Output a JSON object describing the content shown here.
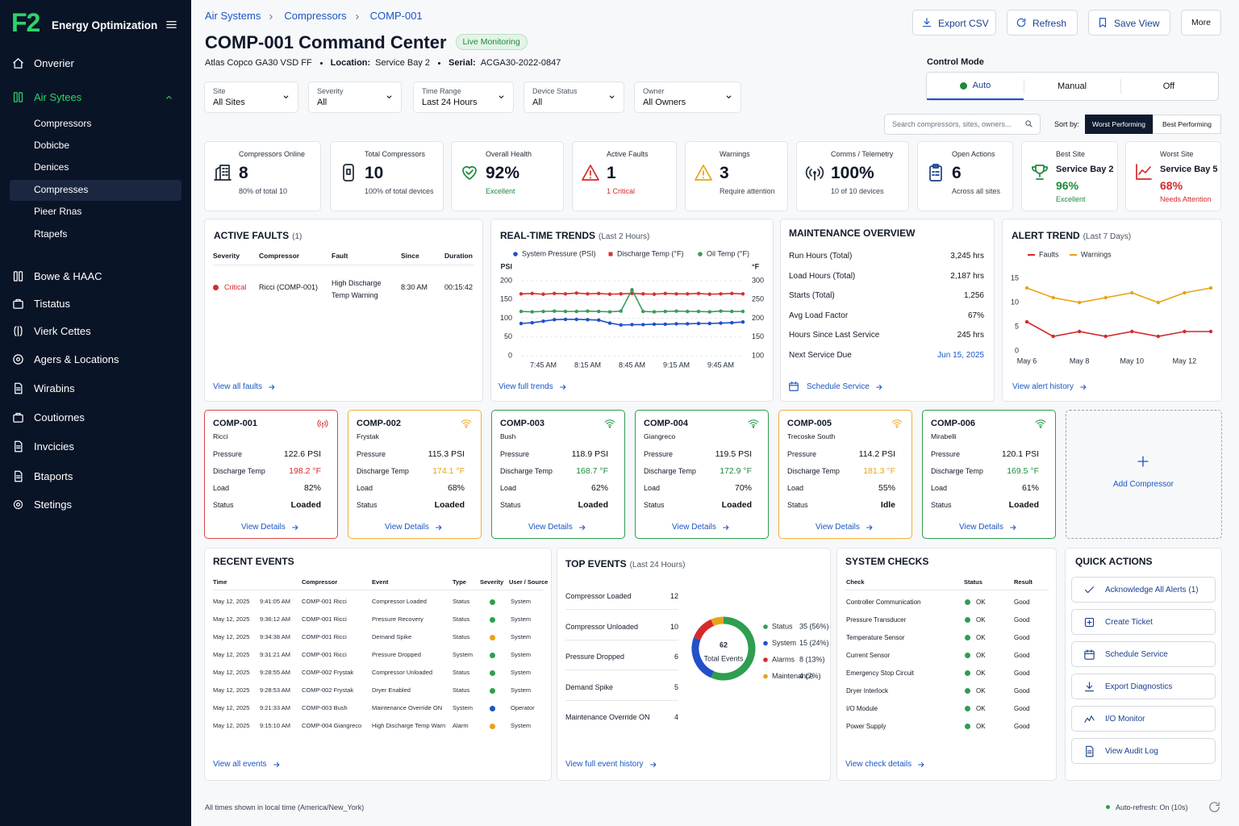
{
  "sidebar": {
    "logo": "F2",
    "brand": "Energy Optimization",
    "nav": [
      {
        "label": "Onverier"
      },
      {
        "label": "Air Sytees",
        "expanded": true,
        "children": [
          {
            "label": "Compressors"
          },
          {
            "label": "Dobicbe"
          },
          {
            "label": "Denices"
          },
          {
            "label": "Compresses",
            "selected": true
          },
          {
            "label": "Pieer Rnas"
          },
          {
            "label": "Rtapefs"
          }
        ]
      },
      {
        "label": "Bowe & HAAC"
      },
      {
        "label": "Tistatus"
      },
      {
        "label": "Vierk Cettes"
      },
      {
        "label": "Agers & Locations"
      },
      {
        "label": "Wirabins"
      },
      {
        "label": "Coutiornes"
      },
      {
        "label": "Invcicies"
      },
      {
        "label": "Btaports"
      },
      {
        "label": "Stetings"
      }
    ]
  },
  "header": {
    "breadcrumb": [
      "Air Systems",
      "Compressors",
      "COMP-001"
    ],
    "title": "COMP-001 Command Center",
    "badge": "Live Monitoring",
    "model": "Atlas Copco GA30 VSD FF",
    "location_label": "Location:",
    "location": "Service Bay 2",
    "serial_label": "Serial:",
    "serial": "ACGA30-2022-0847",
    "actions": [
      "Export CSV",
      "Refresh",
      "Save View",
      "More"
    ]
  },
  "control_mode": {
    "label": "Control Mode",
    "options": [
      {
        "label": "Auto",
        "active": true
      },
      {
        "label": "Manual"
      },
      {
        "label": "Off"
      }
    ]
  },
  "filters": [
    {
      "label": "Site",
      "value": "All Sites"
    },
    {
      "label": "Severity",
      "value": "All"
    },
    {
      "label": "Time Range",
      "value": "Last 24 Hours"
    },
    {
      "label": "Device Status",
      "value": "All"
    },
    {
      "label": "Owner",
      "value": "All Owners"
    }
  ],
  "search": {
    "placeholder": "Search compressors, sites, owners...",
    "sort_label": "Sort by:",
    "sort_options": [
      {
        "label": "Worst Performing",
        "active": true
      },
      {
        "label": "Best Performing"
      }
    ]
  },
  "kpis": [
    {
      "label": "Compressors Online",
      "value": "8",
      "sub": "80% of total 10"
    },
    {
      "label": "Total Compressors",
      "value": "10",
      "sub": "100% of total devices"
    },
    {
      "label": "Overall Health",
      "value": "92%",
      "sub": "Excellent",
      "sub_color": "#1e8a3c"
    },
    {
      "label": "Active Faults",
      "value": "1",
      "sub": "1 Critical",
      "sub_color": "#d42a2a"
    },
    {
      "label": "Warnings",
      "value": "3",
      "sub": "Require attention"
    },
    {
      "label": "Comms / Telemetry",
      "value": "100%",
      "sub": "10 of 10 devices"
    },
    {
      "label": "Open Actions",
      "value": "6",
      "sub": "Across all sites"
    },
    {
      "label": "Best Site",
      "name": "Service Bay 2",
      "value": "96%",
      "sub": "Excellent",
      "value_color": "#1e8a3c",
      "sub_color": "#1e8a3c"
    },
    {
      "label": "Worst Site",
      "name": "Service Bay 5",
      "value": "68%",
      "sub": "Needs Attention",
      "value_color": "#d42a2a",
      "sub_color": "#d42a2a"
    }
  ],
  "active_faults": {
    "title": "ACTIVE FAULTS",
    "count": "(1)",
    "columns": [
      "Severity",
      "Compressor",
      "Fault",
      "Since",
      "Duration"
    ],
    "rows": [
      [
        "Critical",
        "Ricci (COMP-001)",
        "High Discharge Temp Warning",
        "8:30 AM",
        "00:15:42"
      ]
    ],
    "link": "View all faults"
  },
  "maintenance": {
    "title": "MAINTENANCE OVERVIEW",
    "rows": [
      {
        "label": "Run Hours (Total)",
        "value": "3,245 hrs"
      },
      {
        "label": "Load Hours (Total)",
        "value": "2,187 hrs"
      },
      {
        "label": "Starts (Total)",
        "value": "1,256"
      },
      {
        "label": "Avg Load Factor",
        "value": "67%"
      },
      {
        "label": "Hours Since Last Service",
        "value": "245 hrs"
      },
      {
        "label": "Next Service Due",
        "value": "Jun 15, 2025",
        "color": "#1a56c4"
      }
    ],
    "link": "Schedule Service"
  },
  "compressors": {
    "fields": [
      "Pressure",
      "Discharge Temp",
      "Load",
      "Status"
    ],
    "link": "View Details",
    "add": "Add Compressor",
    "items": [
      {
        "id": "COMP-001",
        "name": "Ricci",
        "color": "#e04646",
        "temp_color": "#d42a2a",
        "values": [
          "122.6 PSI",
          "198.2 °F",
          "82%",
          "Loaded"
        ]
      },
      {
        "id": "COMP-002",
        "name": "Frystak",
        "color": "#efb03a",
        "temp_color": "#e8a317",
        "values": [
          "115.3 PSI",
          "174.1 °F",
          "68%",
          "Loaded"
        ]
      },
      {
        "id": "COMP-003",
        "name": "Bush",
        "color": "#2e9e4f",
        "temp_color": "#1e8a3c",
        "values": [
          "118.9 PSI",
          "168.7 °F",
          "62%",
          "Loaded"
        ]
      },
      {
        "id": "COMP-004",
        "name": "Giangreco",
        "color": "#2e9e4f",
        "temp_color": "#1e8a3c",
        "values": [
          "119.5 PSI",
          "172.9 °F",
          "70%",
          "Loaded"
        ]
      },
      {
        "id": "COMP-005",
        "name": "Trecoske South",
        "color": "#efb03a",
        "temp_color": "#e8a317",
        "values": [
          "114.2 PSI",
          "181.3 °F",
          "55%",
          "Idle"
        ]
      },
      {
        "id": "COMP-006",
        "name": "Mirabelli",
        "color": "#2e9e4f",
        "temp_color": "#1e8a3c",
        "values": [
          "120.1 PSI",
          "169.5 °F",
          "61%",
          "Loaded"
        ]
      }
    ]
  },
  "recent_events": {
    "title": "RECENT EVENTS",
    "columns": [
      "Time",
      "Compressor",
      "Event",
      "Type",
      "Severity",
      "User / Source"
    ],
    "rows": [
      {
        "date": "May 12, 2025",
        "time": "9:41:05 AM",
        "compressor": "COMP-001  Ricci",
        "event": "Compressor Loaded",
        "type": "Status",
        "severity_color": "#2e9e4f",
        "source": "System"
      },
      {
        "date": "May 12, 2025",
        "time": "9:36:12 AM",
        "compressor": "COMP-001  Ricci",
        "event": "Pressure Recovery",
        "type": "Status",
        "severity_color": "#2e9e4f",
        "source": "System"
      },
      {
        "date": "May 12, 2025",
        "time": "9:34:38 AM",
        "compressor": "COMP-001  Ricci",
        "event": "Demand Spike",
        "type": "Status",
        "severity_color": "#e8a317",
        "source": "System"
      },
      {
        "date": "May 12, 2025",
        "time": "9:31:21 AM",
        "compressor": "COMP-001  Ricci",
        "event": "Pressure Dropped",
        "type": "System",
        "severity_color": "#2e9e4f",
        "source": "System"
      },
      {
        "date": "May 12, 2025",
        "time": "9:28:55 AM",
        "compressor": "COMP-002  Frystak",
        "event": "Compressor Unloaded",
        "type": "Status",
        "severity_color": "#2e9e4f",
        "source": "System"
      },
      {
        "date": "May 12, 2025",
        "time": "9:28:53 AM",
        "compressor": "COMP-002  Frystak",
        "event": "Dryer Enabled",
        "type": "Status",
        "severity_color": "#2e9e4f",
        "source": "System"
      },
      {
        "date": "May 12, 2025",
        "time": "9:21:33 AM",
        "compressor": "COMP-003  Bush",
        "event": "Maintenance Override ON",
        "type": "System",
        "severity_color": "#2350c8",
        "source": "Operator"
      },
      {
        "date": "May 12, 2025",
        "time": "9:15:10 AM",
        "compressor": "COMP-004  Giangreco",
        "event": "High Discharge Temp Warn",
        "type": "Alarm",
        "severity_color": "#e8a317",
        "source": "System"
      }
    ],
    "link": "View all events"
  },
  "top_events": {
    "title": "TOP EVENTS",
    "subtitle": "(Last 24 Hours)",
    "items": [
      {
        "label": "Compressor Loaded",
        "count": "12"
      },
      {
        "label": "Compressor Unloaded",
        "count": "10"
      },
      {
        "label": "Pressure Dropped",
        "count": "6"
      },
      {
        "label": "Demand Spike",
        "count": "5"
      },
      {
        "label": "Maintenance Override ON",
        "count": "4"
      }
    ],
    "link": "View full event history"
  },
  "system_checks": {
    "title": "SYSTEM CHECKS",
    "columns": [
      "Check",
      "Status",
      "Result"
    ],
    "rows": [
      [
        "Controller Communication",
        "OK",
        "Good"
      ],
      [
        "Pressure Transducer",
        "OK",
        "Good"
      ],
      [
        "Temperature Sensor",
        "OK",
        "Good"
      ],
      [
        "Current Sensor",
        "OK",
        "Good"
      ],
      [
        "Emergency Stop Circuit",
        "OK",
        "Good"
      ],
      [
        "Dryer Interlock",
        "OK",
        "Good"
      ],
      [
        "I/O Module",
        "OK",
        "Good"
      ],
      [
        "Power Supply",
        "OK",
        "Good"
      ]
    ],
    "link": "View check details"
  },
  "quick_actions": {
    "title": "QUICK ACTIONS",
    "items": [
      "Acknowledge All Alerts (1)",
      "Create Ticket",
      "Schedule Service",
      "Export Diagnostics",
      "I/O Monitor",
      "View Audit Log"
    ]
  },
  "footer": {
    "note": "All times shown in local time (America/New_York)",
    "refresh": "Auto-refresh: On (10s)"
  },
  "chart_data": [
    {
      "type": "line",
      "title": "REAL-TIME TRENDS",
      "subtitle": "(Last 2 Hours)",
      "categories": [
        null,
        null,
        "7:45 AM",
        null,
        null,
        null,
        "8:15 AM",
        null,
        null,
        null,
        "8:45 AM",
        null,
        null,
        null,
        "9:15 AM",
        null,
        null,
        null,
        "9:45 AM",
        null,
        null
      ],
      "ylabel": "PSI",
      "y2label": "°F",
      "ylim": [
        0,
        200
      ],
      "yticks": [
        0,
        50,
        100,
        150,
        200
      ],
      "y2lim": [
        100,
        300
      ],
      "y2ticks": [
        100,
        150,
        200,
        250,
        300
      ],
      "grid": true,
      "series": [
        {
          "name": "System Pressure (PSI)",
          "color": "#1f4fc9",
          "values": [
            86,
            88,
            92,
            96,
            97,
            97,
            96,
            95,
            87,
            82,
            83,
            83,
            84,
            84,
            85,
            85,
            86,
            86,
            87,
            88,
            90
          ]
        },
        {
          "name": "Discharge Temp (°F)",
          "color": "#d93030",
          "axis": "y2",
          "values": [
            265,
            266,
            264,
            266,
            265,
            267,
            265,
            266,
            264,
            265,
            266,
            265,
            264,
            266,
            265,
            265,
            266,
            264,
            265,
            266,
            265
          ]
        },
        {
          "name": "Oil Temp (°F)",
          "color": "#3a9a5a",
          "axis": "y2",
          "values": [
            218,
            217,
            218,
            219,
            218,
            218,
            219,
            218,
            217,
            219,
            276,
            218,
            217,
            218,
            219,
            218,
            218,
            217,
            219,
            218,
            218
          ]
        }
      ],
      "link": "View full trends"
    },
    {
      "type": "line",
      "title": "ALERT TREND",
      "subtitle": "(Last 7 Days)",
      "categories": [
        "May 6",
        null,
        "May 8",
        null,
        "May 10",
        null,
        "May 12",
        null
      ],
      "ylim": [
        0,
        15
      ],
      "yticks": [
        0,
        5,
        10,
        15
      ],
      "grid": false,
      "series": [
        {
          "name": "Faults",
          "color": "#d42a2a",
          "values": [
            6,
            3,
            4,
            3,
            4,
            3,
            4,
            4
          ]
        },
        {
          "name": "Warnings",
          "color": "#e8a317",
          "values": [
            13,
            11,
            10,
            11,
            12,
            10,
            12,
            13
          ]
        }
      ],
      "link": "View alert history"
    },
    {
      "type": "pie",
      "categories": [
        "Status",
        "System",
        "Alarms",
        "Maintenance"
      ],
      "values": [
        35,
        15,
        8,
        4
      ],
      "value_labels": [
        "35 (56%)",
        "15 (24%)",
        "8 (13%)",
        "4 (7%)"
      ],
      "colors": [
        "#2e9e4f",
        "#2350c8",
        "#d42a2a",
        "#e8a317"
      ],
      "total": 62,
      "total_label": "Total Events"
    }
  ]
}
